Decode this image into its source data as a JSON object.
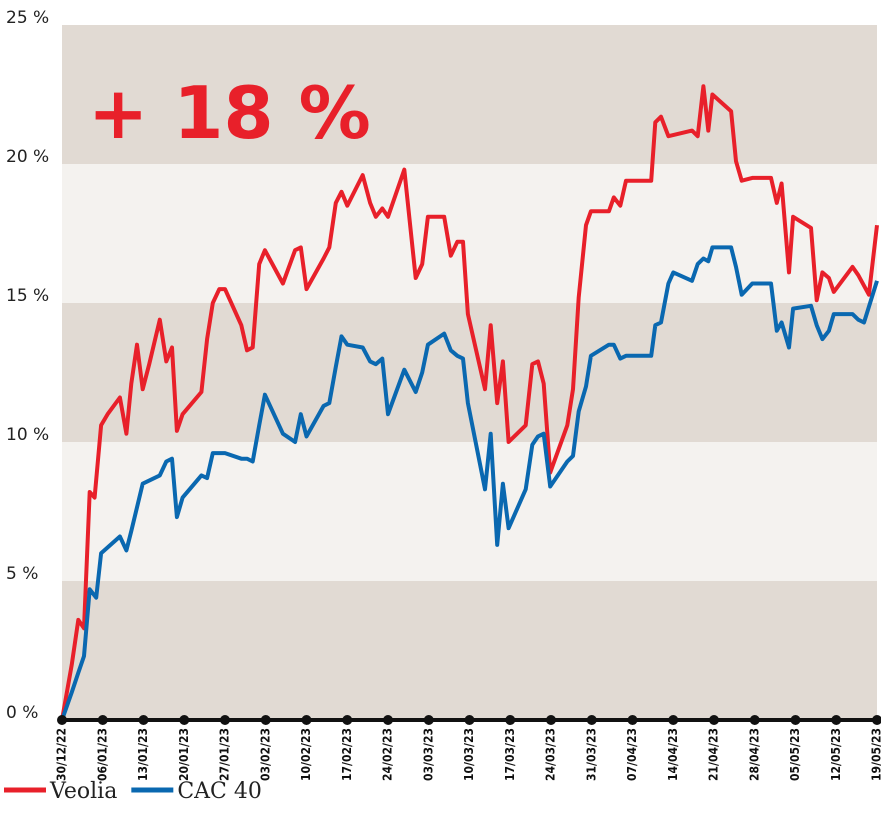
{
  "chart_data": {
    "type": "line",
    "annotation": "+ 18 %",
    "xlim": [
      0,
      100
    ],
    "xticks": [
      {
        "value": 0,
        "label": "30/12/22"
      },
      {
        "value": 5,
        "label": "06/01/23"
      },
      {
        "value": 10,
        "label": "13/01/23"
      },
      {
        "value": 15,
        "label": "20/01/23"
      },
      {
        "value": 20,
        "label": "27/01/23"
      },
      {
        "value": 25,
        "label": "03/02/23"
      },
      {
        "value": 30,
        "label": "10/02/23"
      },
      {
        "value": 35,
        "label": "17/02/23"
      },
      {
        "value": 40,
        "label": "24/02/23"
      },
      {
        "value": 45,
        "label": "03/03/23"
      },
      {
        "value": 50,
        "label": "10/03/23"
      },
      {
        "value": 55,
        "label": "17/03/23"
      },
      {
        "value": 60,
        "label": "24/03/23"
      },
      {
        "value": 65,
        "label": "31/03/23"
      },
      {
        "value": 70,
        "label": "07/04/23"
      },
      {
        "value": 75,
        "label": "14/04/23"
      },
      {
        "value": 80,
        "label": "21/04/23"
      },
      {
        "value": 85,
        "label": "28/04/23"
      },
      {
        "value": 90,
        "label": "05/05/23"
      },
      {
        "value": 95,
        "label": "12/05/23"
      },
      {
        "value": 100,
        "label": "19/05/23"
      }
    ],
    "ylim": [
      0,
      25
    ],
    "yticks": [
      {
        "value": 0,
        "label": "0 %"
      },
      {
        "value": 5,
        "label": "5 %"
      },
      {
        "value": 10,
        "label": "10 %"
      },
      {
        "value": 15,
        "label": "15 %"
      },
      {
        "value": 20,
        "label": "20 %"
      },
      {
        "value": 25,
        "label": "25 %"
      }
    ],
    "series": [
      {
        "name": "Veolia",
        "color": "#e8202a",
        "x": [
          0,
          1.2,
          2,
          2.7,
          3.4,
          4,
          4.8,
          5.6,
          7.1,
          7.9,
          8.5,
          9.2,
          9.9,
          10.7,
          12,
          12.8,
          13.5,
          14.1,
          14.8,
          17.1,
          17.8,
          18.5,
          19.3,
          20,
          22,
          22.7,
          23.4,
          24.2,
          24.9,
          27.1,
          28.6,
          29.3,
          30,
          32.1,
          32.8,
          33.6,
          34.3,
          35,
          36.9,
          37.8,
          38.5,
          39.3,
          40,
          42,
          43.4,
          44.2,
          44.9,
          46.9,
          47.7,
          48.5,
          49.2,
          49.8,
          51.9,
          52.6,
          53.4,
          54.1,
          54.8,
          56.9,
          57.7,
          58.4,
          59.1,
          59.9,
          62,
          62.7,
          63.4,
          64.3,
          64.9,
          67.1,
          67.7,
          68.5,
          69.2,
          72.3,
          72.8,
          73.5,
          74.4,
          77.3,
          78,
          78.7,
          79.3,
          79.8,
          82.1,
          82.7,
          83.4,
          84.7,
          87,
          87.7,
          88.3,
          89.2,
          89.7,
          91.9,
          92.6,
          93.3,
          94.1,
          94.7,
          97,
          97.7,
          99,
          100
        ],
        "values": [
          0,
          2.0,
          3.6,
          3.3,
          8.2,
          8.0,
          10.6,
          11.0,
          11.6,
          10.3,
          12.1,
          13.5,
          11.9,
          12.8,
          14.4,
          12.9,
          13.4,
          10.4,
          11.0,
          11.8,
          13.7,
          15.0,
          15.5,
          15.5,
          14.2,
          13.3,
          13.4,
          16.4,
          16.9,
          15.7,
          16.9,
          17.0,
          15.5,
          16.6,
          17.0,
          18.6,
          19.0,
          18.5,
          19.6,
          18.6,
          18.1,
          18.4,
          18.1,
          19.8,
          15.9,
          16.4,
          18.1,
          18.1,
          16.7,
          17.2,
          17.2,
          14.6,
          11.9,
          14.2,
          11.4,
          12.9,
          10.0,
          10.6,
          12.8,
          12.9,
          12.1,
          8.9,
          10.6,
          11.9,
          15.2,
          17.8,
          18.3,
          18.3,
          18.8,
          18.5,
          19.4,
          19.4,
          21.5,
          21.7,
          21.0,
          21.2,
          21.0,
          22.8,
          21.2,
          22.5,
          21.9,
          20.1,
          19.4,
          19.5,
          19.5,
          18.6,
          19.3,
          16.1,
          18.1,
          17.7,
          15.1,
          16.1,
          15.9,
          15.4,
          16.3,
          16.0,
          15.3,
          17.8
        ]
      },
      {
        "name": "CAC 40",
        "color": "#0a68b0",
        "x": [
          0,
          1.2,
          2,
          2.7,
          3.4,
          4.2,
          4.8,
          7.1,
          7.9,
          8.5,
          9.9,
          12,
          12.8,
          13.5,
          14.1,
          14.8,
          17.1,
          17.8,
          18.5,
          20,
          22,
          22.7,
          23.4,
          24.2,
          24.9,
          27.1,
          28.6,
          29.3,
          30,
          32.1,
          32.8,
          33.6,
          34.3,
          35,
          36.9,
          37.8,
          38.5,
          39.3,
          40,
          42,
          43.4,
          44.2,
          44.9,
          46.9,
          47.7,
          48.5,
          49.2,
          49.8,
          51.9,
          52.6,
          53.4,
          54.1,
          54.8,
          56.9,
          57.7,
          58.4,
          59.1,
          59.9,
          62,
          62.7,
          63.4,
          64.3,
          64.9,
          67.1,
          67.7,
          68.5,
          69.2,
          72.3,
          72.8,
          73.5,
          74.4,
          75,
          77.3,
          78,
          78.7,
          79.3,
          79.8,
          82.1,
          82.7,
          83.4,
          84.7,
          87,
          87.7,
          88.3,
          89.2,
          89.7,
          91.9,
          92.6,
          93.3,
          94.1,
          94.7,
          97,
          97.7,
          98.4,
          100
        ],
        "values": [
          0,
          1.0,
          1.7,
          2.3,
          4.7,
          4.4,
          6.0,
          6.6,
          6.1,
          6.8,
          8.5,
          8.8,
          9.3,
          9.4,
          7.3,
          8.0,
          8.8,
          8.7,
          9.6,
          9.6,
          9.4,
          9.4,
          9.3,
          10.6,
          11.7,
          10.3,
          10.0,
          11.0,
          10.2,
          11.3,
          11.4,
          12.7,
          13.8,
          13.5,
          13.4,
          12.9,
          12.8,
          13.0,
          11.0,
          12.6,
          11.8,
          12.5,
          13.5,
          13.9,
          13.3,
          13.1,
          13.0,
          11.4,
          8.3,
          10.3,
          6.3,
          8.5,
          6.9,
          8.3,
          9.9,
          10.2,
          10.3,
          8.4,
          9.3,
          9.5,
          11.1,
          12.0,
          13.1,
          13.5,
          13.5,
          13.0,
          13.1,
          13.1,
          14.2,
          14.3,
          15.7,
          16.1,
          15.8,
          16.4,
          16.6,
          16.5,
          17.0,
          17.0,
          16.3,
          15.3,
          15.7,
          15.7,
          14.0,
          14.3,
          13.4,
          14.8,
          14.9,
          14.2,
          13.7,
          14.0,
          14.6,
          14.6,
          14.4,
          14.3,
          15.8
        ]
      }
    ]
  }
}
